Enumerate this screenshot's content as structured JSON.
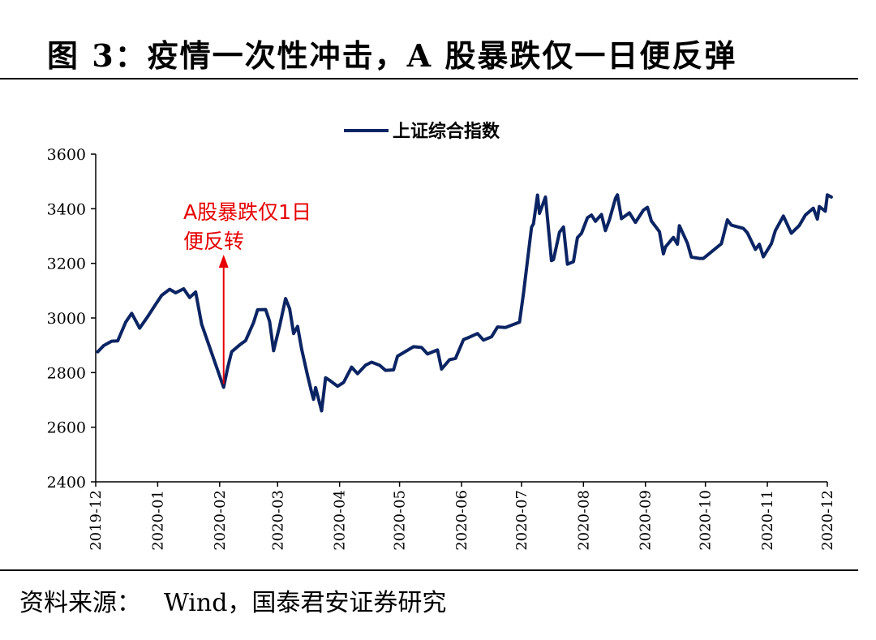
{
  "figure": {
    "title": "图 3：疫情一次性冲击，A 股暴跌仅一日便反弹",
    "source_label": "资料来源：",
    "source_text": "Wind，国泰君安证券研究"
  },
  "colors": {
    "series": "#0b2463",
    "annotation": "#e60000",
    "axis": "#000000"
  },
  "chart_data": {
    "type": "line",
    "legend": {
      "position": "top-center"
    },
    "xlabel": "",
    "ylabel": "",
    "ylim": [
      2400,
      3600
    ],
    "yticks": [
      2400,
      2600,
      2800,
      3000,
      3200,
      3400,
      3600
    ],
    "xticks": [
      "2019-12",
      "2020-01",
      "2020-02",
      "2020-03",
      "2020-04",
      "2020-05",
      "2020-06",
      "2020-07",
      "2020-08",
      "2020-09",
      "2020-10",
      "2020-11",
      "2020-12"
    ],
    "grid": false,
    "annotations": [
      {
        "lines": [
          "A股暴跌仅1日",
          "便反转"
        ],
        "x": "2020-02-03",
        "y": 2746
      }
    ],
    "series": [
      {
        "name": "上证综合指数",
        "points": [
          [
            "2019-12-02",
            2876
          ],
          [
            "2019-12-05",
            2899
          ],
          [
            "2019-12-09",
            2915
          ],
          [
            "2019-12-12",
            2916
          ],
          [
            "2019-12-16",
            2985
          ],
          [
            "2019-12-19",
            3017
          ],
          [
            "2019-12-23",
            2963
          ],
          [
            "2019-12-27",
            3005
          ],
          [
            "2019-12-31",
            3050
          ],
          [
            "2020-01-03",
            3083
          ],
          [
            "2020-01-07",
            3105
          ],
          [
            "2020-01-10",
            3092
          ],
          [
            "2020-01-14",
            3107
          ],
          [
            "2020-01-17",
            3075
          ],
          [
            "2020-01-20",
            3095
          ],
          [
            "2020-01-23",
            2977
          ],
          [
            "2020-02-03",
            2746
          ],
          [
            "2020-02-05",
            2818
          ],
          [
            "2020-02-07",
            2876
          ],
          [
            "2020-02-11",
            2901
          ],
          [
            "2020-02-14",
            2917
          ],
          [
            "2020-02-18",
            2984
          ],
          [
            "2020-02-20",
            3030
          ],
          [
            "2020-02-24",
            3031
          ],
          [
            "2020-02-26",
            2987
          ],
          [
            "2020-02-28",
            2880
          ],
          [
            "2020-03-02",
            2970
          ],
          [
            "2020-03-05",
            3071
          ],
          [
            "2020-03-07",
            3034
          ],
          [
            "2020-03-09",
            2943
          ],
          [
            "2020-03-11",
            2969
          ],
          [
            "2020-03-13",
            2887
          ],
          [
            "2020-03-16",
            2789
          ],
          [
            "2020-03-18",
            2728
          ],
          [
            "2020-03-19",
            2702
          ],
          [
            "2020-03-20",
            2745
          ],
          [
            "2020-03-23",
            2660
          ],
          [
            "2020-03-25",
            2781
          ],
          [
            "2020-03-27",
            2772
          ],
          [
            "2020-03-31",
            2750
          ],
          [
            "2020-04-03",
            2764
          ],
          [
            "2020-04-07",
            2820
          ],
          [
            "2020-04-10",
            2796
          ],
          [
            "2020-04-14",
            2827
          ],
          [
            "2020-04-17",
            2838
          ],
          [
            "2020-04-21",
            2827
          ],
          [
            "2020-04-24",
            2808
          ],
          [
            "2020-04-28",
            2810
          ],
          [
            "2020-04-30",
            2860
          ],
          [
            "2020-05-08",
            2895
          ],
          [
            "2020-05-12",
            2892
          ],
          [
            "2020-05-15",
            2868
          ],
          [
            "2020-05-20",
            2883
          ],
          [
            "2020-05-22",
            2813
          ],
          [
            "2020-05-26",
            2847
          ],
          [
            "2020-05-29",
            2852
          ],
          [
            "2020-06-02",
            2921
          ],
          [
            "2020-06-05",
            2930
          ],
          [
            "2020-06-09",
            2943
          ],
          [
            "2020-06-12",
            2919
          ],
          [
            "2020-06-16",
            2931
          ],
          [
            "2020-06-19",
            2967
          ],
          [
            "2020-06-23",
            2965
          ],
          [
            "2020-06-30",
            2985
          ],
          [
            "2020-07-02",
            3090
          ],
          [
            "2020-07-06",
            3332
          ],
          [
            "2020-07-07",
            3345
          ],
          [
            "2020-07-09",
            3450
          ],
          [
            "2020-07-10",
            3383
          ],
          [
            "2020-07-13",
            3443
          ],
          [
            "2020-07-16",
            3210
          ],
          [
            "2020-07-17",
            3214
          ],
          [
            "2020-07-20",
            3314
          ],
          [
            "2020-07-22",
            3333
          ],
          [
            "2020-07-24",
            3197
          ],
          [
            "2020-07-27",
            3206
          ],
          [
            "2020-07-29",
            3294
          ],
          [
            "2020-07-31",
            3310
          ],
          [
            "2020-08-03",
            3367
          ],
          [
            "2020-08-05",
            3377
          ],
          [
            "2020-08-07",
            3354
          ],
          [
            "2020-08-10",
            3379
          ],
          [
            "2020-08-12",
            3320
          ],
          [
            "2020-08-14",
            3360
          ],
          [
            "2020-08-17",
            3438
          ],
          [
            "2020-08-18",
            3451
          ],
          [
            "2020-08-20",
            3364
          ],
          [
            "2020-08-24",
            3385
          ],
          [
            "2020-08-27",
            3350
          ],
          [
            "2020-08-31",
            3395
          ],
          [
            "2020-09-02",
            3405
          ],
          [
            "2020-09-04",
            3355
          ],
          [
            "2020-09-08",
            3316
          ],
          [
            "2020-09-10",
            3235
          ],
          [
            "2020-09-11",
            3260
          ],
          [
            "2020-09-15",
            3295
          ],
          [
            "2020-09-17",
            3270
          ],
          [
            "2020-09-18",
            3338
          ],
          [
            "2020-09-22",
            3274
          ],
          [
            "2020-09-24",
            3223
          ],
          [
            "2020-09-28",
            3218
          ],
          [
            "2020-09-30",
            3218
          ],
          [
            "2020-10-09",
            3272
          ],
          [
            "2020-10-12",
            3359
          ],
          [
            "2020-10-14",
            3340
          ],
          [
            "2020-10-16",
            3336
          ],
          [
            "2020-10-20",
            3328
          ],
          [
            "2020-10-22",
            3312
          ],
          [
            "2020-10-26",
            3251
          ],
          [
            "2020-10-28",
            3270
          ],
          [
            "2020-10-30",
            3224
          ],
          [
            "2020-11-03",
            3272
          ],
          [
            "2020-11-05",
            3320
          ],
          [
            "2020-11-09",
            3373
          ],
          [
            "2020-11-11",
            3342
          ],
          [
            "2020-11-13",
            3310
          ],
          [
            "2020-11-17",
            3339
          ],
          [
            "2020-11-20",
            3377
          ],
          [
            "2020-11-24",
            3402
          ],
          [
            "2020-11-26",
            3362
          ],
          [
            "2020-11-27",
            3408
          ],
          [
            "2020-11-30",
            3391
          ],
          [
            "2020-12-01",
            3451
          ],
          [
            "2020-12-03",
            3443
          ]
        ]
      }
    ]
  }
}
